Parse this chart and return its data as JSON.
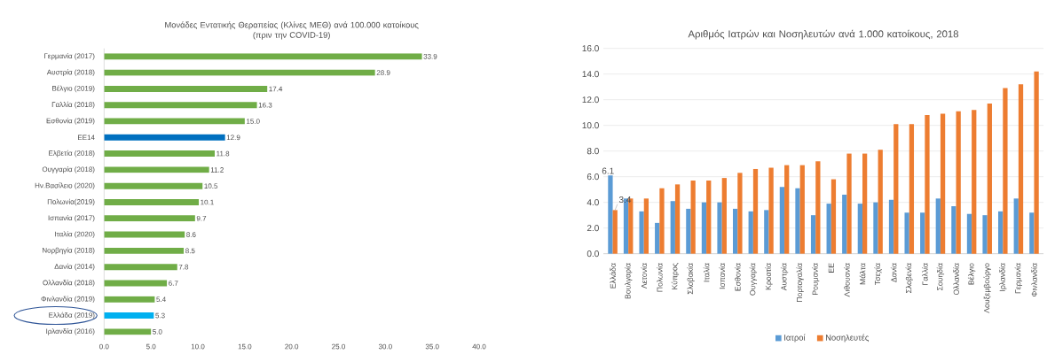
{
  "chart_data": [
    {
      "type": "bar",
      "orientation": "horizontal",
      "title": "Μονάδες Εντατικής Θεραπείας (Κλίνες ΜΕΘ) ανά 100.000 κατοίκους",
      "subtitle": "(πριν την COVID-19)",
      "categories": [
        "Γερμανία (2017)",
        "Αυστρία (2018)",
        "Βέλγιο (2019)",
        "Γαλλία (2018)",
        "Εσθονία (2019)",
        "ΕΕ14",
        "Ελβετία (2018)",
        "Ουγγαρία (2018)",
        "Ην.Βασίλειο (2020)",
        "Πολωνία(2019)",
        "Ισπανία (2017)",
        "Ιταλία (2020)",
        "Νορβηγία (2018)",
        "Δανία (2014)",
        "Ολλανδία (2018)",
        "Φινλανδία (2019)",
        "Ελλάδα (2019)",
        "Ιρλανδία (2016)"
      ],
      "values": [
        33.9,
        28.9,
        17.4,
        16.3,
        15.0,
        12.9,
        11.8,
        11.2,
        10.5,
        10.1,
        9.7,
        8.6,
        8.5,
        7.8,
        6.7,
        5.4,
        5.3,
        5.0
      ],
      "colors": [
        "#70ad47",
        "#70ad47",
        "#70ad47",
        "#70ad47",
        "#70ad47",
        "#0070c0",
        "#70ad47",
        "#70ad47",
        "#70ad47",
        "#70ad47",
        "#70ad47",
        "#70ad47",
        "#70ad47",
        "#70ad47",
        "#70ad47",
        "#70ad47",
        "#00b0f0",
        "#70ad47"
      ],
      "xlim": [
        0,
        40
      ],
      "xticks": [
        {
          "value": 0,
          "label": "0.0"
        },
        {
          "value": 5,
          "label": "5.0"
        },
        {
          "value": 10,
          "label": "10.0"
        },
        {
          "value": 15,
          "label": "15.0"
        },
        {
          "value": 20,
          "label": "20.0"
        },
        {
          "value": 25,
          "label": "25.0"
        },
        {
          "value": 30,
          "label": "30.0"
        },
        {
          "value": 35,
          "label": "35.0"
        },
        {
          "value": 40,
          "label": "40.0"
        }
      ],
      "value_labels": [
        "33.9",
        "28.9",
        "17.4",
        "16.3",
        "15.0",
        "12.9",
        "11.8",
        "11.2",
        "10.5",
        "10.1",
        "9.7",
        "8.6",
        "8.5",
        "7.8",
        "6.7",
        "5.4",
        "5.3",
        "5.0"
      ]
    },
    {
      "type": "bar",
      "title": "Αριθμός Ιατρών και Νοσηλευτών ανά 1.000 κατοίκους, 2018",
      "categories": [
        "Ελλάδα",
        "Βουλγαρία",
        "Λετονία",
        "Πολωνία",
        "Κύπρος",
        "Σλοβακία",
        "Ιταλία",
        "Ισπανία",
        "Εσθονία",
        "Ουγγαρία",
        "Κροατία",
        "Αυστρία",
        "Πορτογαλία",
        "Ρουμανία",
        "ΕΕ",
        "Λιθουανία",
        "Μάλτα",
        "Τσεχία",
        "Δανία",
        "Σλοβενία",
        "Γαλλία",
        "Σουηδία",
        "Ολλανδία",
        "Βέλγιο",
        "Λουξεμβούργο",
        "Ιρλανδία",
        "Γερμανία",
        "Φινλανδία"
      ],
      "series": [
        {
          "name": "Ιατροί",
          "color": "#5b9bd5",
          "values": [
            6.1,
            4.3,
            3.3,
            2.4,
            4.1,
            3.5,
            4.0,
            4.0,
            3.5,
            3.3,
            3.4,
            5.2,
            5.1,
            3.0,
            3.9,
            4.6,
            3.9,
            4.0,
            4.2,
            3.2,
            3.2,
            4.3,
            3.7,
            3.1,
            3.0,
            3.3,
            4.3,
            3.2
          ],
          "value_labels": [
            "6.1",
            null,
            null,
            null,
            null,
            null,
            null,
            null,
            null,
            null,
            null,
            null,
            null,
            null,
            null,
            null,
            null,
            null,
            null,
            null,
            null,
            null,
            null,
            null,
            null,
            null,
            null,
            null
          ]
        },
        {
          "name": "Νοσηλευτές",
          "color": "#ed7d31",
          "values": [
            3.4,
            4.3,
            4.3,
            5.1,
            5.4,
            5.7,
            5.7,
            5.9,
            6.3,
            6.6,
            6.7,
            6.9,
            6.9,
            7.2,
            5.8,
            7.8,
            7.8,
            8.1,
            10.1,
            10.1,
            10.8,
            10.9,
            11.1,
            11.2,
            11.7,
            12.9,
            13.2,
            14.2
          ],
          "value_labels": [
            "3.4",
            null,
            null,
            null,
            null,
            null,
            null,
            null,
            null,
            null,
            null,
            null,
            null,
            null,
            null,
            null,
            null,
            null,
            null,
            null,
            null,
            null,
            null,
            null,
            null,
            null,
            null,
            null
          ]
        }
      ],
      "ylim": [
        0,
        16
      ],
      "yticks": [
        {
          "value": 0,
          "label": "0.0"
        },
        {
          "value": 2,
          "label": "2.0"
        },
        {
          "value": 4,
          "label": "4.0"
        },
        {
          "value": 6,
          "label": "6.0"
        },
        {
          "value": 8,
          "label": "8.0"
        },
        {
          "value": 10,
          "label": "10.0"
        },
        {
          "value": 12,
          "label": "12.0"
        },
        {
          "value": 14,
          "label": "14.0"
        },
        {
          "value": 16,
          "label": "16.0"
        }
      ],
      "grid": "y",
      "legend": "bottom"
    }
  ]
}
